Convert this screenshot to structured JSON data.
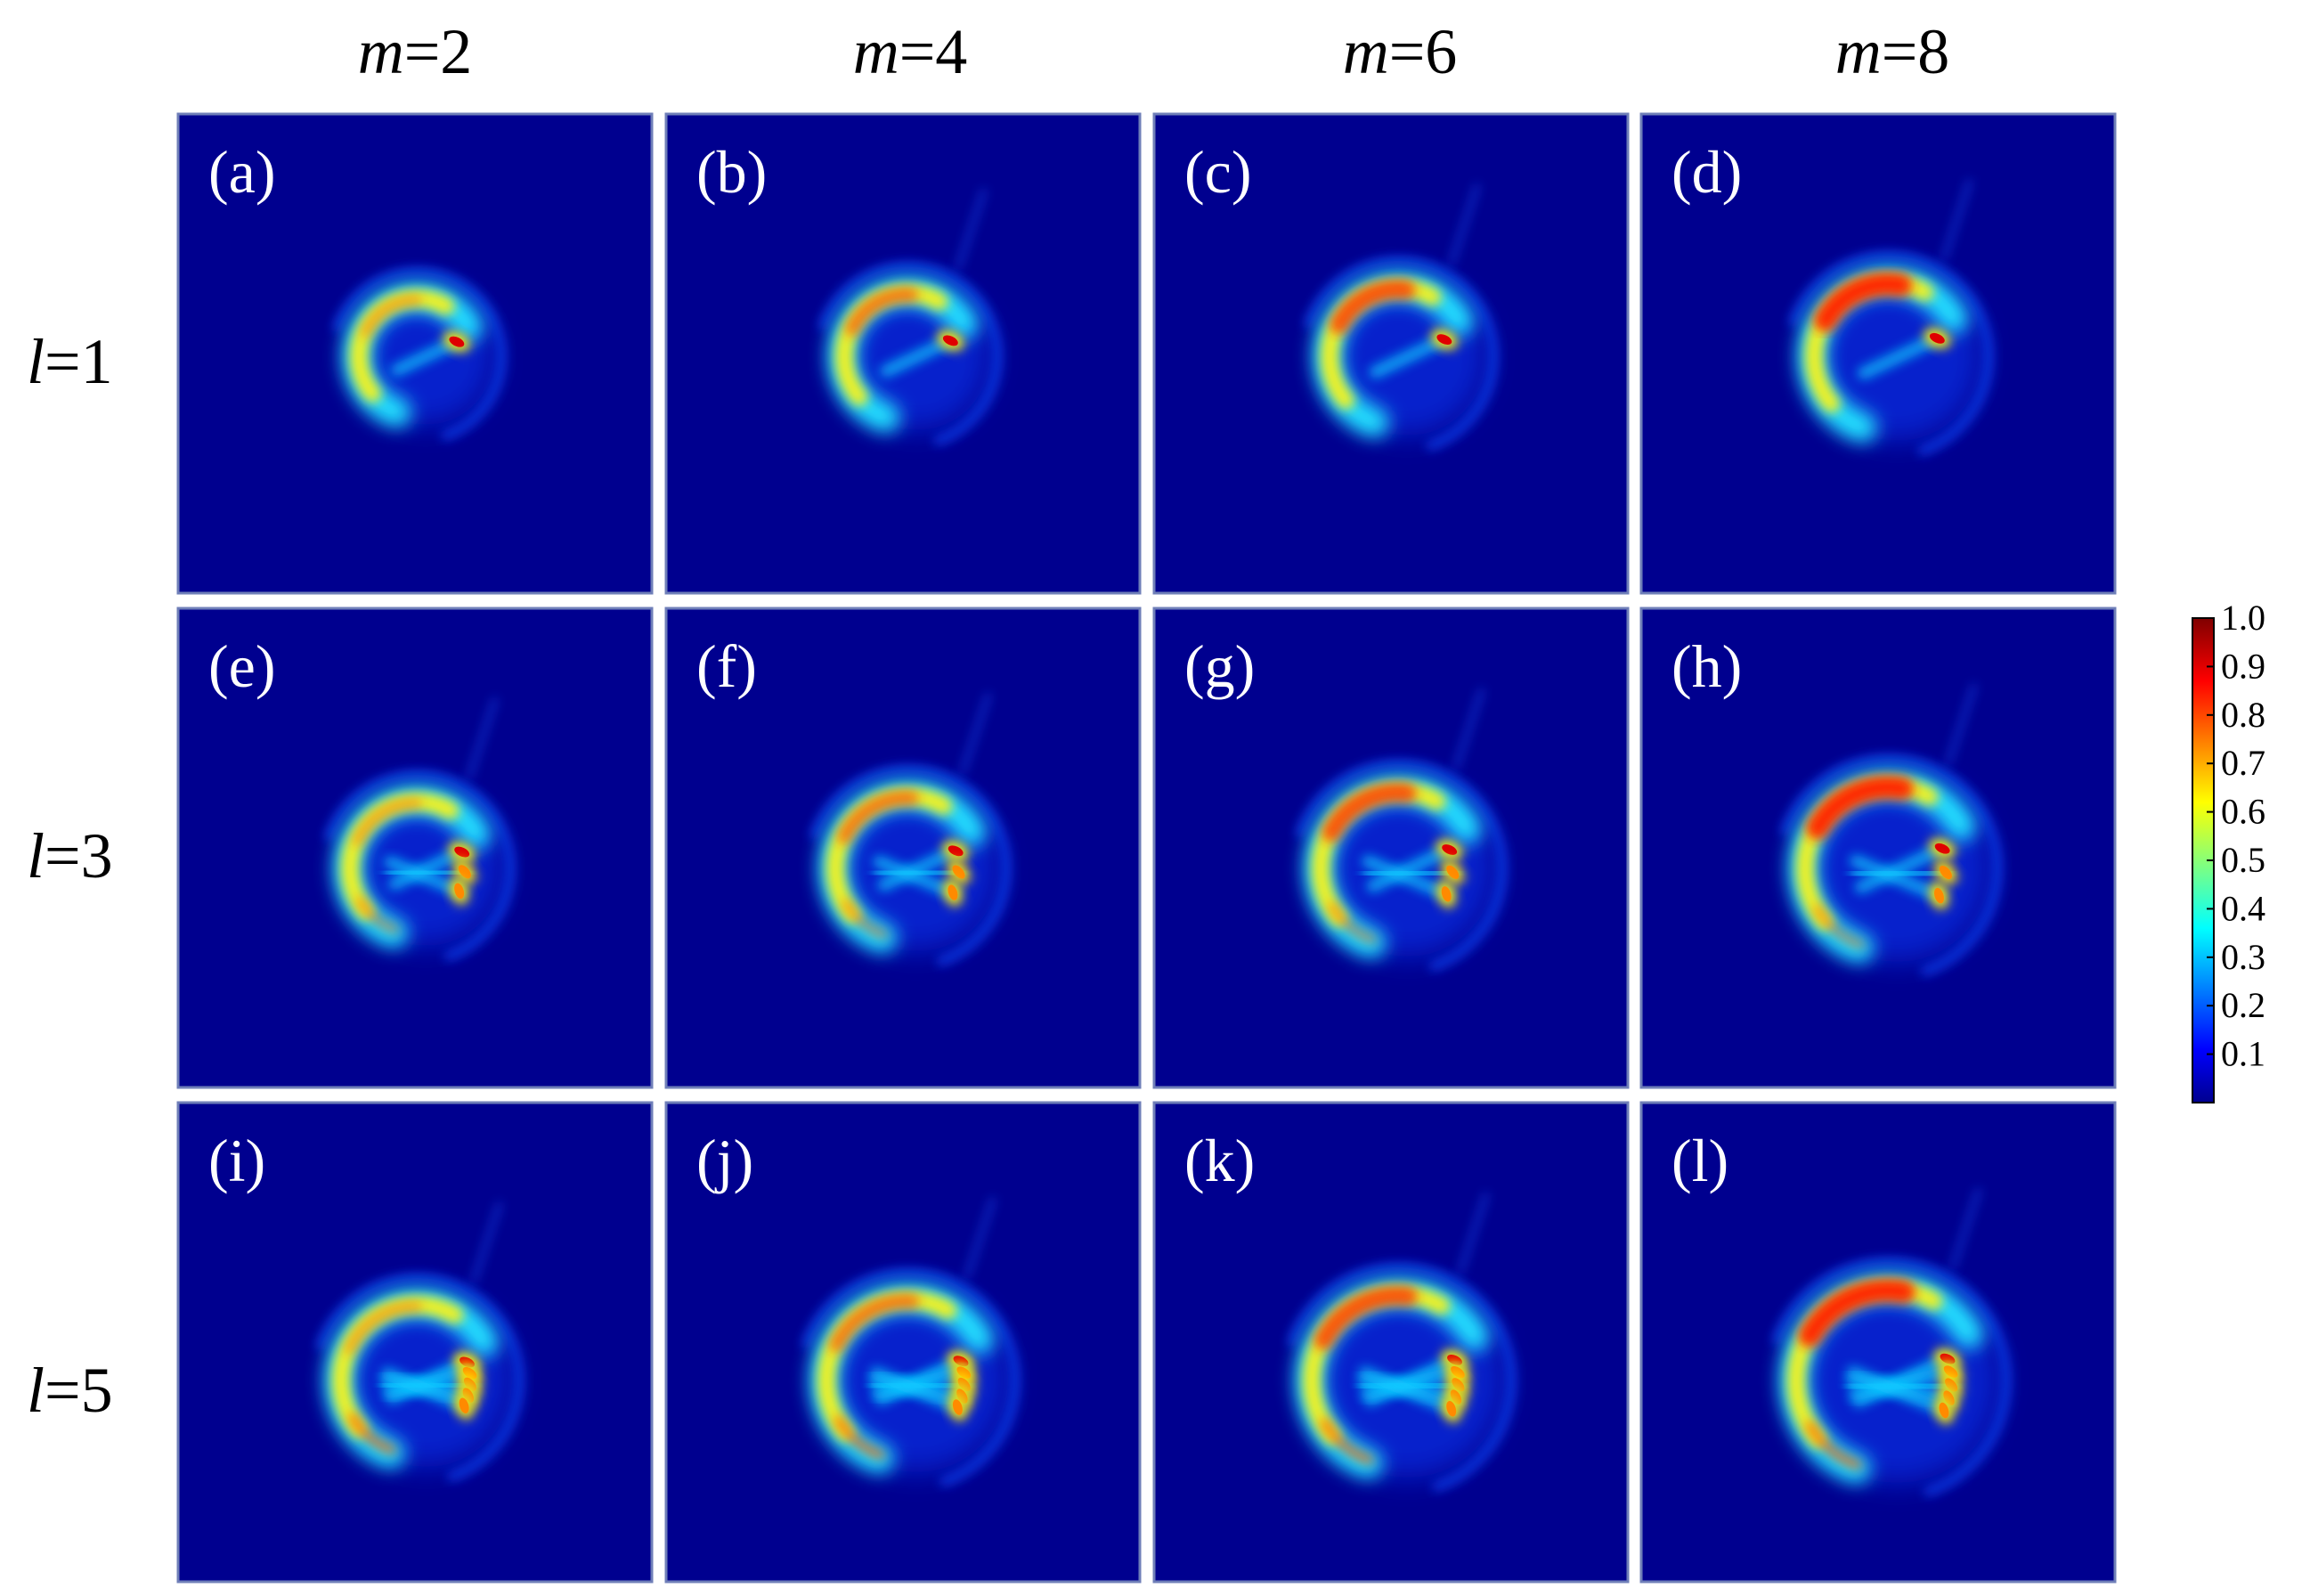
{
  "chart_data": {
    "type": "heatmap",
    "columns": [
      {
        "var": "m",
        "value": "=2"
      },
      {
        "var": "m",
        "value": "=4"
      },
      {
        "var": "m",
        "value": "=6"
      },
      {
        "var": "m",
        "value": "=8"
      }
    ],
    "rows": [
      {
        "var": "l",
        "value": "=1"
      },
      {
        "var": "l",
        "value": "=3"
      },
      {
        "var": "l",
        "value": "=5"
      }
    ],
    "panels": [
      {
        "label": "(a)",
        "m": 2,
        "l": 1
      },
      {
        "label": "(b)",
        "m": 4,
        "l": 1
      },
      {
        "label": "(c)",
        "m": 6,
        "l": 1
      },
      {
        "label": "(d)",
        "m": 8,
        "l": 1
      },
      {
        "label": "(e)",
        "m": 2,
        "l": 3
      },
      {
        "label": "(f)",
        "m": 4,
        "l": 3
      },
      {
        "label": "(g)",
        "m": 6,
        "l": 3
      },
      {
        "label": "(h)",
        "m": 8,
        "l": 3
      },
      {
        "label": "(i)",
        "m": 2,
        "l": 5
      },
      {
        "label": "(j)",
        "m": 4,
        "l": 5
      },
      {
        "label": "(k)",
        "m": 6,
        "l": 5
      },
      {
        "label": "(l)",
        "m": 8,
        "l": 5
      }
    ],
    "colorbar": {
      "range": [
        0,
        1
      ],
      "ticks": [
        "1.0",
        "0.9",
        "0.8",
        "0.7",
        "0.6",
        "0.5",
        "0.4",
        "0.3",
        "0.2",
        "0.1"
      ],
      "colormap": "jet"
    },
    "colors": {
      "background": "#00008f",
      "label": "#ffffff"
    }
  }
}
